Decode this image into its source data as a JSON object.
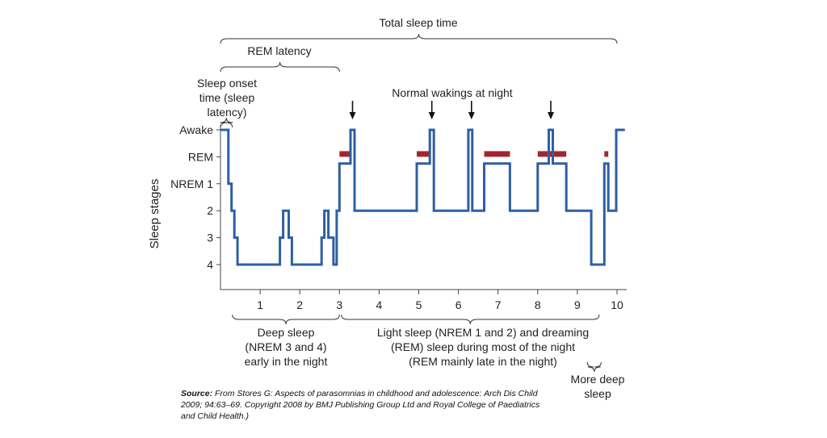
{
  "chart_data": {
    "type": "line",
    "ylabel": "Sleep stages",
    "y_ticks": [
      "Awake",
      "REM",
      "NREM 1",
      "2",
      "3",
      "4"
    ],
    "x_ticks": [
      "1",
      "2",
      "3",
      "4",
      "5",
      "6",
      "7",
      "8",
      "9",
      "10"
    ],
    "xlim": [
      0,
      10
    ],
    "series": [
      {
        "x": [
          0,
          0.2,
          0.2,
          0.28,
          0.28,
          0.35,
          0.35,
          0.43,
          0.43,
          1.5,
          1.5,
          1.58,
          1.58,
          1.72,
          1.72,
          1.8,
          1.8,
          2.55,
          2.55,
          2.62,
          2.62,
          2.72,
          2.72,
          2.85,
          2.85,
          2.93,
          2.93,
          3.0,
          3.0,
          3.28,
          3.28,
          3.38,
          3.38,
          4.95,
          4.95,
          5.28,
          5.28,
          5.38,
          5.38,
          6.25,
          6.25,
          6.35,
          6.35,
          6.65,
          6.65,
          7.3,
          7.3,
          8.0,
          8.0,
          8.28,
          8.28,
          8.38,
          8.38,
          8.72,
          8.72,
          9.35,
          9.35,
          9.68,
          9.68,
          9.78,
          9.78,
          9.98,
          9.98,
          10.2
        ],
        "y": [
          0,
          0,
          2,
          2,
          3,
          3,
          4,
          4,
          5,
          5,
          4,
          4,
          3,
          3,
          4,
          4,
          5,
          5,
          4,
          4,
          3,
          3,
          4,
          4,
          5,
          5,
          3,
          3,
          1.25,
          1.25,
          0,
          0,
          3,
          3,
          1.25,
          1.25,
          0,
          0,
          3,
          3,
          0,
          0,
          3,
          3,
          1.25,
          1.25,
          3,
          3,
          1.25,
          1.25,
          0,
          0,
          1.25,
          1.25,
          3,
          3,
          5,
          5,
          1.25,
          1.25,
          3,
          3,
          0,
          0
        ]
      }
    ],
    "rem_bars": [
      [
        3.0,
        3.28
      ],
      [
        4.95,
        5.28
      ],
      [
        6.65,
        7.3
      ],
      [
        8.0,
        8.72
      ],
      [
        9.68,
        9.78
      ]
    ],
    "wakings": [
      3.33,
      5.33,
      6.33,
      8.33
    ],
    "colors": {
      "line": "#2e5fa3",
      "rem": "#a3262f",
      "text": "#222222"
    }
  },
  "annotations": {
    "total_sleep_time": "Total sleep time",
    "rem_latency": "REM latency",
    "sleep_onset": [
      "Sleep onset",
      "time (sleep",
      "latency)"
    ],
    "normal_wakings": "Normal wakings at night",
    "deep_sleep": [
      "Deep sleep",
      "(NREM 3 and 4)",
      "early in the night"
    ],
    "light_sleep": [
      "Light sleep (NREM 1 and 2) and dreaming",
      "(REM) sleep during most of the night",
      "(REM mainly late in the night)"
    ],
    "more_deep_sleep": [
      "More deep",
      "sleep"
    ]
  },
  "source": {
    "label": "Source:",
    "text": " From Stores G: Aspects of parasomnias in childhood and adolescence: Arch Dis Child 2009; 94:63–69. Copyright 2008 by BMJ Publishing Group Ltd and Royal College of Paediatrics and Child Health.)"
  }
}
